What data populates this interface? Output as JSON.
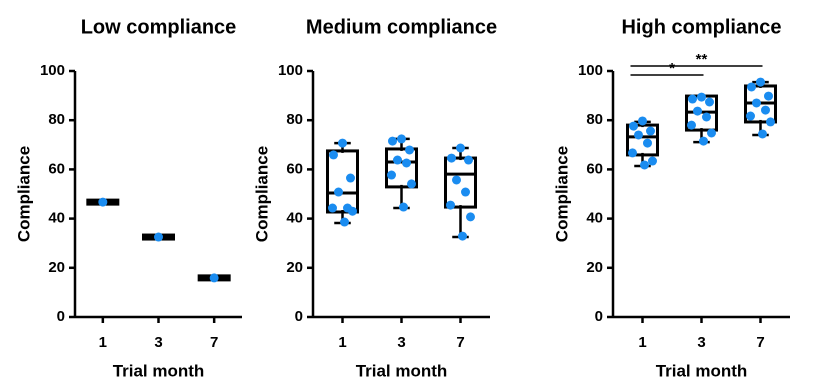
{
  "chart_data": [
    {
      "type": "box",
      "title": "Low compliance",
      "xlabel": "Trial month",
      "ylabel": "Compliance",
      "categories": [
        "1",
        "3",
        "7"
      ],
      "ylim": [
        0,
        100
      ],
      "yticks": [
        0,
        20,
        40,
        60,
        80,
        100
      ],
      "point_color": "#1a8cf0",
      "box_color": "#000000",
      "boxes": [
        {
          "whislo": 46.7,
          "q1": 46.7,
          "med": 46.7,
          "q3": 46.7,
          "whishi": 46.7,
          "points": [
            46.7
          ]
        },
        {
          "whislo": 32.5,
          "q1": 32.5,
          "med": 32.5,
          "q3": 32.5,
          "whishi": 32.5,
          "points": [
            32.5
          ]
        },
        {
          "whislo": 15.9,
          "q1": 15.9,
          "med": 15.9,
          "q3": 15.9,
          "whishi": 15.9,
          "points": [
            15.9
          ]
        }
      ]
    },
    {
      "type": "box",
      "title": "Medium compliance",
      "xlabel": "Trial month",
      "ylabel": "Compliance",
      "categories": [
        "1",
        "3",
        "7"
      ],
      "ylim": [
        0,
        100
      ],
      "yticks": [
        0,
        20,
        40,
        60,
        80,
        100
      ],
      "point_color": "#1a8cf0",
      "box_color": "#000000",
      "boxes": [
        {
          "whislo": 38.2,
          "q1": 43.5,
          "med": 50.4,
          "q3": 66.7,
          "whishi": 70.7,
          "points": [
            70.7,
            65.9,
            56.5,
            50.8,
            44.3,
            44.3,
            43,
            38.6
          ]
        },
        {
          "whislo": 44.3,
          "q1": 53.7,
          "med": 63,
          "q3": 67.5,
          "whishi": 72.4,
          "points": [
            72.4,
            71.5,
            67.9,
            63.8,
            62.6,
            57.7,
            54.1,
            44.7
          ]
        },
        {
          "whislo": 32.5,
          "q1": 45.5,
          "med": 58.1,
          "q3": 63.8,
          "whishi": 68.7,
          "points": [
            68.7,
            64.6,
            63.8,
            55.7,
            50.8,
            45.5,
            40.7,
            32.9
          ]
        }
      ]
    },
    {
      "type": "box",
      "title": "High compliance",
      "xlabel": "Trial month",
      "ylabel": "Compliance",
      "categories": [
        "1",
        "3",
        "7"
      ],
      "ylim": [
        0,
        100
      ],
      "yticks": [
        0,
        20,
        40,
        60,
        80,
        100
      ],
      "point_color": "#1a8cf0",
      "box_color": "#000000",
      "boxes": [
        {
          "whislo": 61.4,
          "q1": 66.7,
          "med": 73.2,
          "q3": 77.2,
          "whishi": 79.3,
          "points": [
            79.7,
            77.6,
            75.6,
            74,
            70.7,
            66.7,
            63.4,
            61.8
          ]
        },
        {
          "whislo": 71.1,
          "q1": 76.8,
          "med": 83.3,
          "q3": 89,
          "whishi": 89.8,
          "points": [
            89.4,
            88.6,
            87.4,
            83.7,
            81.3,
            78,
            74.8,
            71.5
          ]
        },
        {
          "whislo": 74,
          "q1": 80.1,
          "med": 87,
          "q3": 93.1,
          "whishi": 95.5,
          "points": [
            95.5,
            93.5,
            89.8,
            87,
            84.1,
            81.7,
            79.3,
            74.4
          ]
        }
      ],
      "comparisons": [
        {
          "between": [
            "1",
            "3"
          ],
          "label": "*"
        },
        {
          "between": [
            "1",
            "7"
          ],
          "label": "**"
        }
      ]
    }
  ]
}
